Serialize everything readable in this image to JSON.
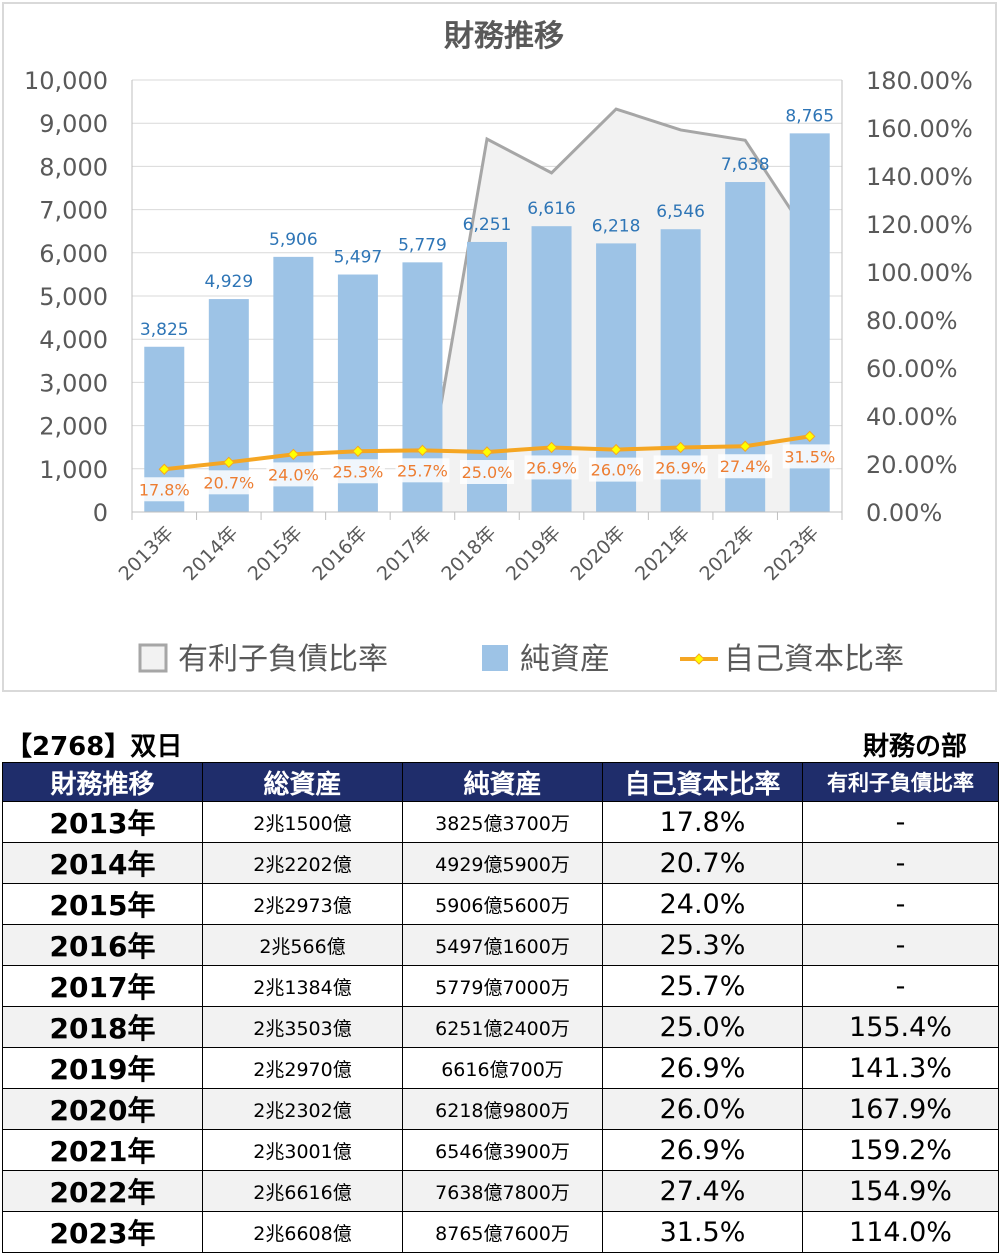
{
  "chart_data": {
    "type": "bar",
    "title": "財務推移",
    "categories": [
      "2013年",
      "2014年",
      "2015年",
      "2016年",
      "2017年",
      "2018年",
      "2019年",
      "2020年",
      "2021年",
      "2022年",
      "2023年"
    ],
    "series": [
      {
        "name": "有利子負債比率",
        "type": "area",
        "axis": "right",
        "values": [
          null,
          null,
          null,
          null,
          null,
          155.4,
          141.3,
          167.9,
          159.2,
          154.9,
          114.0
        ],
        "color": "#a6a6a6"
      },
      {
        "name": "純資産",
        "type": "bar",
        "axis": "left",
        "values": [
          3825,
          4929,
          5906,
          5497,
          5779,
          6251,
          6616,
          6218,
          6546,
          7638,
          8765
        ],
        "labels": [
          "3,825",
          "4,929",
          "5,906",
          "5,497",
          "5,779",
          "6,251",
          "6,616",
          "6,218",
          "6,546",
          "7,638",
          "8,765"
        ],
        "color": "#9dc3e6"
      },
      {
        "name": "自己資本比率",
        "type": "line",
        "axis": "right",
        "values": [
          17.8,
          20.7,
          24.0,
          25.3,
          25.7,
          25.0,
          26.9,
          26.0,
          26.9,
          27.4,
          31.5
        ],
        "labels": [
          "17.8%",
          "20.7%",
          "24.0%",
          "25.3%",
          "25.7%",
          "25.0%",
          "26.9%",
          "26.0%",
          "26.9%",
          "27.4%",
          "31.5%"
        ],
        "color": "#f5a623"
      }
    ],
    "y_left": {
      "ylim": [
        0,
        10000
      ],
      "ticks": [
        "0",
        "1,000",
        "2,000",
        "3,000",
        "4,000",
        "5,000",
        "6,000",
        "7,000",
        "8,000",
        "9,000",
        "10,000"
      ]
    },
    "y_right": {
      "ylim": [
        0,
        180
      ],
      "ticks": [
        "0.00%",
        "20.00%",
        "40.00%",
        "60.00%",
        "80.00%",
        "100.00%",
        "120.00%",
        "140.00%",
        "160.00%",
        "180.00%"
      ]
    },
    "grid": true,
    "legend": "bottom"
  },
  "caption": {
    "company": "【2768】双日",
    "section": "財務の部"
  },
  "table": {
    "headers": [
      "財務推移",
      "総資産",
      "純資産",
      "自己資本比率",
      "有利子負債比率"
    ],
    "rows": [
      [
        "2013年",
        "2兆1500億",
        "3825億3700万",
        "17.8%",
        "-"
      ],
      [
        "2014年",
        "2兆2202億",
        "4929億5900万",
        "20.7%",
        "-"
      ],
      [
        "2015年",
        "2兆2973億",
        "5906億5600万",
        "24.0%",
        "-"
      ],
      [
        "2016年",
        "2兆566億",
        "5497億1600万",
        "25.3%",
        "-"
      ],
      [
        "2017年",
        "2兆1384億",
        "5779億7000万",
        "25.7%",
        "-"
      ],
      [
        "2018年",
        "2兆3503億",
        "6251億2400万",
        "25.0%",
        "155.4%"
      ],
      [
        "2019年",
        "2兆2970億",
        "6616億700万",
        "26.9%",
        "141.3%"
      ],
      [
        "2020年",
        "2兆2302億",
        "6218億9800万",
        "26.0%",
        "167.9%"
      ],
      [
        "2021年",
        "2兆3001億",
        "6546億3900万",
        "26.9%",
        "159.2%"
      ],
      [
        "2022年",
        "2兆6616億",
        "7638億7800万",
        "27.4%",
        "154.9%"
      ],
      [
        "2023年",
        "2兆6608億",
        "8765億7600万",
        "31.5%",
        "114.0%"
      ]
    ]
  }
}
